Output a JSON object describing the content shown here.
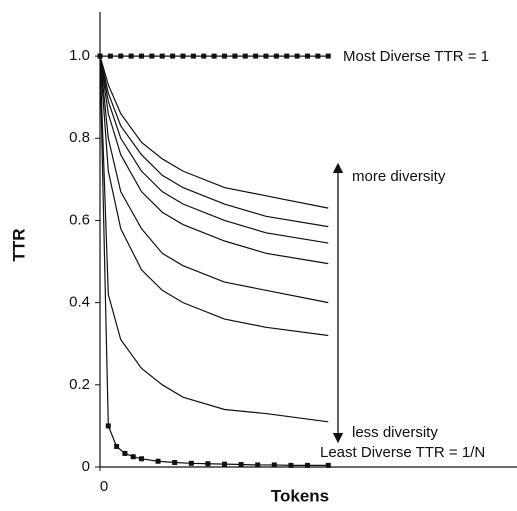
{
  "chart_data": {
    "type": "line",
    "xlabel": "Tokens",
    "ylabel": "TTR",
    "xlim": [
      0,
      100
    ],
    "xticks": [
      0
    ],
    "ylim": [
      0,
      1.1
    ],
    "yticks": [
      0.0,
      0.2,
      0.4,
      0.6,
      0.8,
      {
        "value": 1,
        "label": "1.0"
      }
    ],
    "annotations": [
      "Most Diverse TTR = 1",
      "more diversity",
      "less diversity",
      "Least Diverse TTR = 1/N"
    ],
    "series": [
      {
        "color": "#111111",
        "markers": true,
        "x": [
          0,
          2.5,
          5,
          7.5,
          10,
          12.5,
          15,
          17.5,
          20,
          22.5,
          25,
          27.5,
          30,
          32.5,
          35,
          37.5,
          40,
          42.5,
          45,
          47.5,
          50,
          52.5,
          55
        ],
        "values": [
          1,
          1,
          1,
          1,
          1,
          1,
          1,
          1,
          1,
          1,
          1,
          1,
          1,
          1,
          1,
          1,
          1,
          1,
          1,
          1,
          1,
          1,
          1
        ]
      },
      {
        "color": "#111111",
        "markers": false,
        "x": [
          0,
          2,
          5,
          10,
          15,
          20,
          30,
          40,
          55
        ],
        "values": [
          1,
          0.93,
          0.86,
          0.79,
          0.75,
          0.72,
          0.68,
          0.66,
          0.63
        ]
      },
      {
        "color": "#111111",
        "markers": false,
        "x": [
          0,
          2,
          5,
          10,
          15,
          20,
          30,
          40,
          55
        ],
        "values": [
          1,
          0.91,
          0.83,
          0.76,
          0.71,
          0.68,
          0.64,
          0.61,
          0.585
        ]
      },
      {
        "color": "#111111",
        "markers": false,
        "x": [
          0,
          2,
          5,
          10,
          15,
          20,
          30,
          40,
          55
        ],
        "values": [
          1,
          0.89,
          0.8,
          0.72,
          0.67,
          0.64,
          0.6,
          0.57,
          0.545
        ]
      },
      {
        "color": "#111111",
        "markers": false,
        "x": [
          0,
          2,
          5,
          10,
          15,
          20,
          30,
          40,
          55
        ],
        "values": [
          1,
          0.86,
          0.76,
          0.67,
          0.62,
          0.59,
          0.55,
          0.52,
          0.495
        ]
      },
      {
        "color": "#111111",
        "markers": false,
        "x": [
          0,
          2,
          5,
          10,
          15,
          20,
          30,
          40,
          55
        ],
        "values": [
          1,
          0.8,
          0.67,
          0.58,
          0.52,
          0.49,
          0.45,
          0.43,
          0.4
        ]
      },
      {
        "color": "#111111",
        "markers": false,
        "x": [
          0,
          2,
          5,
          10,
          15,
          20,
          30,
          40,
          55
        ],
        "values": [
          1,
          0.72,
          0.58,
          0.48,
          0.43,
          0.4,
          0.36,
          0.34,
          0.32
        ]
      },
      {
        "color": "#111111",
        "markers": false,
        "x": [
          0,
          2,
          5,
          10,
          15,
          20,
          30,
          40,
          55
        ],
        "values": [
          1,
          0.42,
          0.31,
          0.24,
          0.2,
          0.17,
          0.14,
          0.13,
          0.11
        ]
      },
      {
        "color": "#111111",
        "markers": true,
        "x": [
          0,
          2,
          4,
          6,
          8,
          10,
          14,
          18,
          22,
          26,
          30,
          34,
          38,
          42,
          46,
          50,
          55
        ],
        "values": [
          1,
          0.1,
          0.05,
          0.033,
          0.025,
          0.02,
          0.014,
          0.011,
          0.009,
          0.008,
          0.007,
          0.006,
          0.005,
          0.005,
          0.004,
          0.004,
          0.004
        ]
      }
    ]
  }
}
